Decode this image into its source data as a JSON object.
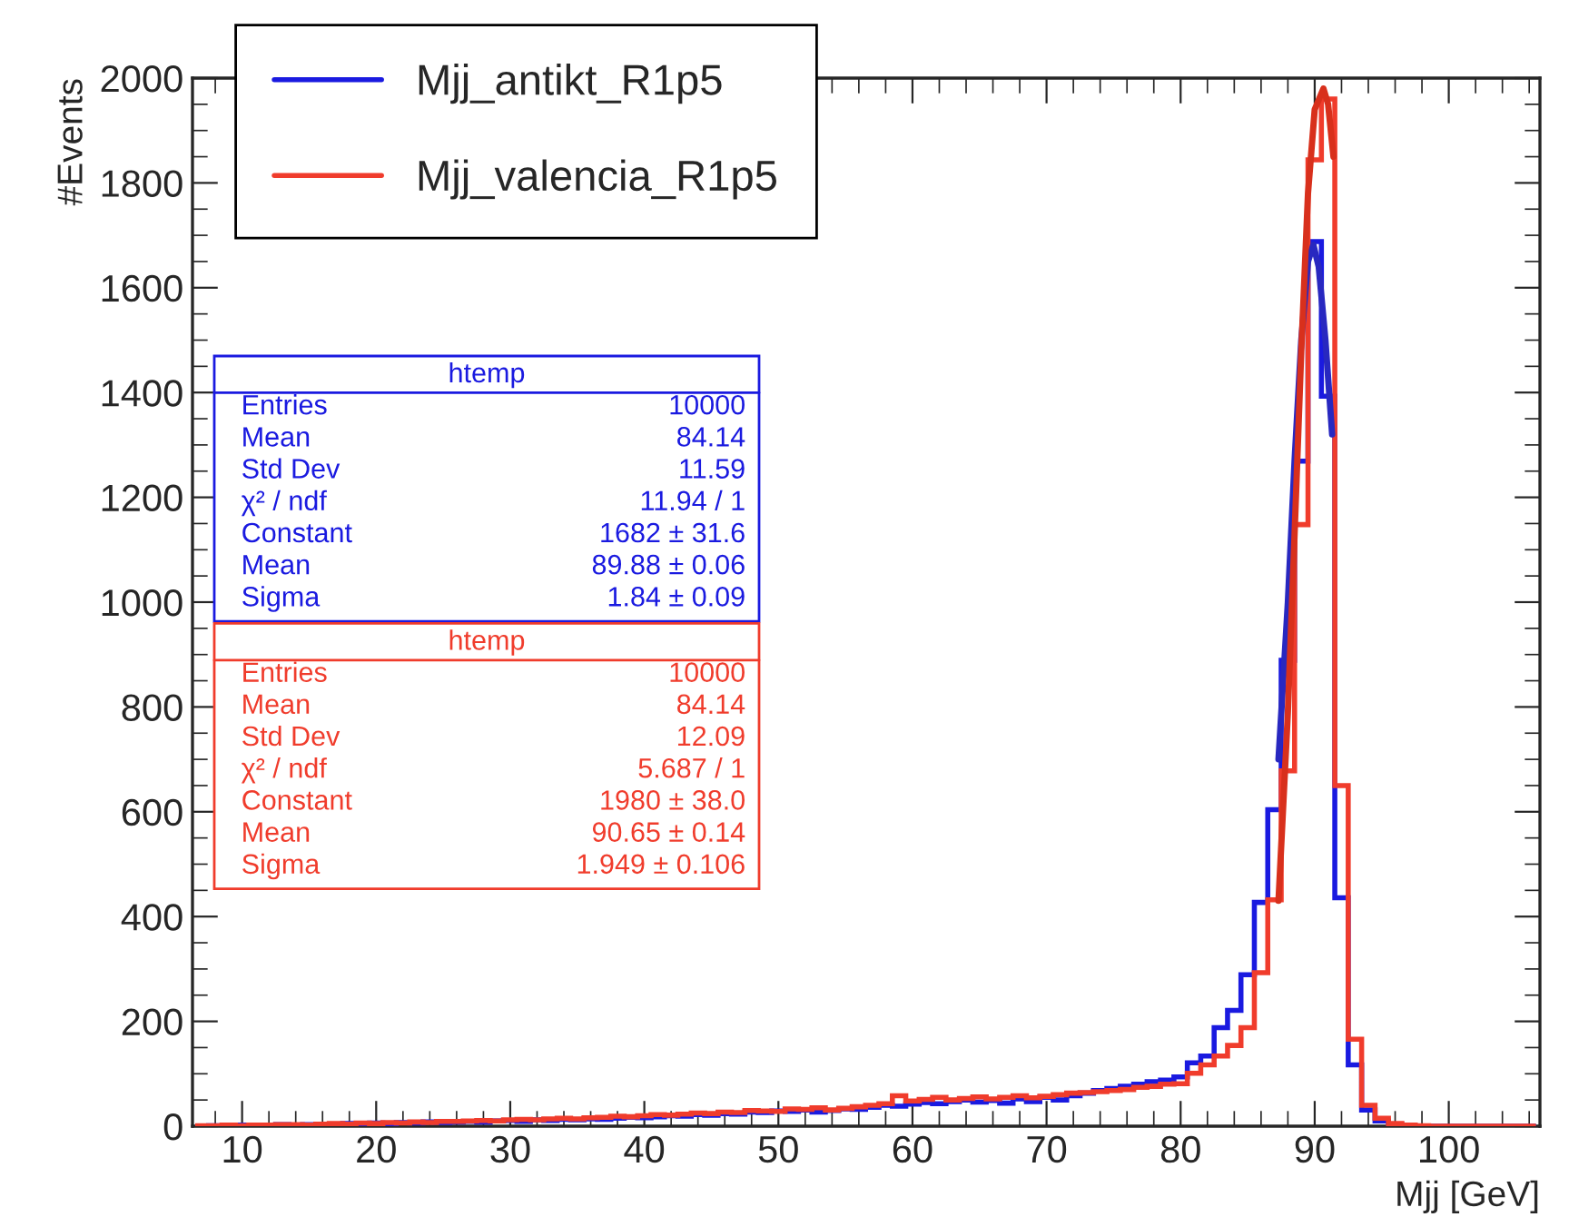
{
  "chart_data": {
    "type": "histogram",
    "xlabel": "Mjj [GeV]",
    "ylabel": "#Events",
    "bins": [
      6.5,
      7.5,
      8.5,
      9.5,
      10.5,
      11.5,
      12.5,
      13.5,
      14.5,
      15.5,
      16.5,
      17.5,
      18.5,
      19.5,
      20.5,
      21.5,
      22.5,
      23.5,
      24.5,
      25.5,
      26.5,
      27.5,
      28.5,
      29.5,
      30.5,
      31.5,
      32.5,
      33.5,
      34.5,
      35.5,
      36.5,
      37.5,
      38.5,
      39.5,
      40.5,
      41.5,
      42.5,
      43.5,
      44.5,
      45.5,
      46.5,
      47.5,
      48.5,
      49.5,
      50.5,
      51.5,
      52.5,
      53.5,
      54.5,
      55.5,
      56.5,
      57.5,
      58.5,
      59.5,
      60.5,
      61.5,
      62.5,
      63.5,
      64.5,
      65.5,
      66.5,
      67.5,
      68.5,
      69.5,
      70.5,
      71.5,
      72.5,
      73.5,
      74.5,
      75.5,
      76.5,
      77.5,
      78.5,
      79.5,
      80.5,
      81.5,
      82.5,
      83.5,
      84.5,
      85.5,
      86.5,
      87.5,
      88.5,
      89.5,
      90.5,
      91.5,
      92.5,
      93.5,
      94.5,
      95.5,
      96.5,
      97.5,
      98.5,
      99.5,
      100.5,
      101.5,
      102.5,
      103.5,
      104.5,
      105.5,
      106.5
    ],
    "series": [
      {
        "name": "Mjj_antikt_R1p5",
        "color": "#1a1ae0",
        "values": [
          0,
          1,
          1,
          2,
          1,
          2,
          3,
          2,
          3,
          4,
          3,
          5,
          4,
          6,
          5,
          7,
          6,
          8,
          7,
          8,
          9,
          8,
          10,
          11,
          9,
          12,
          11,
          13,
          12,
          14,
          13,
          15,
          17,
          16,
          18,
          20,
          19,
          22,
          21,
          24,
          23,
          27,
          26,
          29,
          28,
          31,
          27,
          30,
          33,
          32,
          36,
          40,
          38,
          42,
          45,
          43,
          47,
          50,
          46,
          49,
          44,
          52,
          47,
          55,
          50,
          58,
          63,
          68,
          72,
          76,
          80,
          85,
          88,
          94,
          121,
          134,
          188,
          221,
          289,
          427,
          604,
          889,
          1269,
          1688,
          1393,
          436,
          117,
          31,
          10,
          3,
          1,
          0,
          0,
          0,
          0,
          0,
          0,
          0,
          0,
          0
        ]
      },
      {
        "name": "Mjj_valencia_R1p5",
        "color": "#f03c2c",
        "values": [
          1,
          1,
          2,
          1,
          2,
          2,
          3,
          3,
          2,
          4,
          5,
          4,
          6,
          5,
          7,
          6,
          8,
          7,
          9,
          9,
          10,
          11,
          10,
          12,
          13,
          12,
          14,
          15,
          14,
          16,
          17,
          19,
          18,
          20,
          22,
          21,
          23,
          25,
          24,
          27,
          26,
          30,
          29,
          28,
          33,
          32,
          35,
          31,
          34,
          37,
          40,
          43,
          58,
          48,
          51,
          55,
          50,
          53,
          56,
          52,
          55,
          58,
          54,
          57,
          60,
          63,
          64,
          66,
          68,
          70,
          74,
          76,
          80,
          81,
          101,
          117,
          134,
          154,
          188,
          293,
          432,
          678,
          1148,
          1844,
          1960,
          650,
          166,
          40,
          15,
          5,
          2,
          1,
          0,
          0,
          0,
          0,
          0,
          0,
          0,
          0
        ]
      },
      {
        "type": "line",
        "color": "#2828c0",
        "x": [
          87.3,
          88,
          88.5,
          89,
          89.5,
          89.9,
          90.3,
          90.8,
          91.3
        ],
        "values": [
          700,
          1000,
          1270,
          1500,
          1650,
          1682,
          1640,
          1500,
          1320
        ]
      },
      {
        "type": "line",
        "color": "#d8301c",
        "x": [
          87.3,
          88,
          88.5,
          89,
          89.5,
          90,
          90.65,
          91,
          91.2,
          91.4
        ],
        "values": [
          430,
          790,
          1130,
          1480,
          1780,
          1940,
          1980,
          1950,
          1900,
          1850
        ]
      }
    ],
    "xlim": [
      6.3,
      106.8
    ],
    "ylim": [
      0,
      2000
    ],
    "xticks": [
      10,
      20,
      30,
      40,
      50,
      60,
      70,
      80,
      90,
      100
    ],
    "yticks": [
      0,
      200,
      400,
      600,
      800,
      1000,
      1200,
      1400,
      1600,
      1800,
      2000
    ],
    "legend": "top left",
    "grid": false,
    "annotations": [
      "htemp",
      "Entries\t10000",
      "Mean\t84.14",
      "Std Dev\t11.59",
      "χ² / ndf\t11.94 / 1",
      "Constant\t1682 ± 31.6",
      "Mean\t89.88 ± 0.06",
      "Sigma\t1.84 ± 0.09",
      "htemp",
      "Entries\t10000",
      "Mean\t84.14",
      "Std Dev\t12.09",
      "χ² / ndf\t5.687 / 1",
      "Constant\t1980 ± 38.0",
      "Mean\t90.65 ± 0.14",
      "Sigma\t1.949 ± 0.106"
    ]
  }
}
